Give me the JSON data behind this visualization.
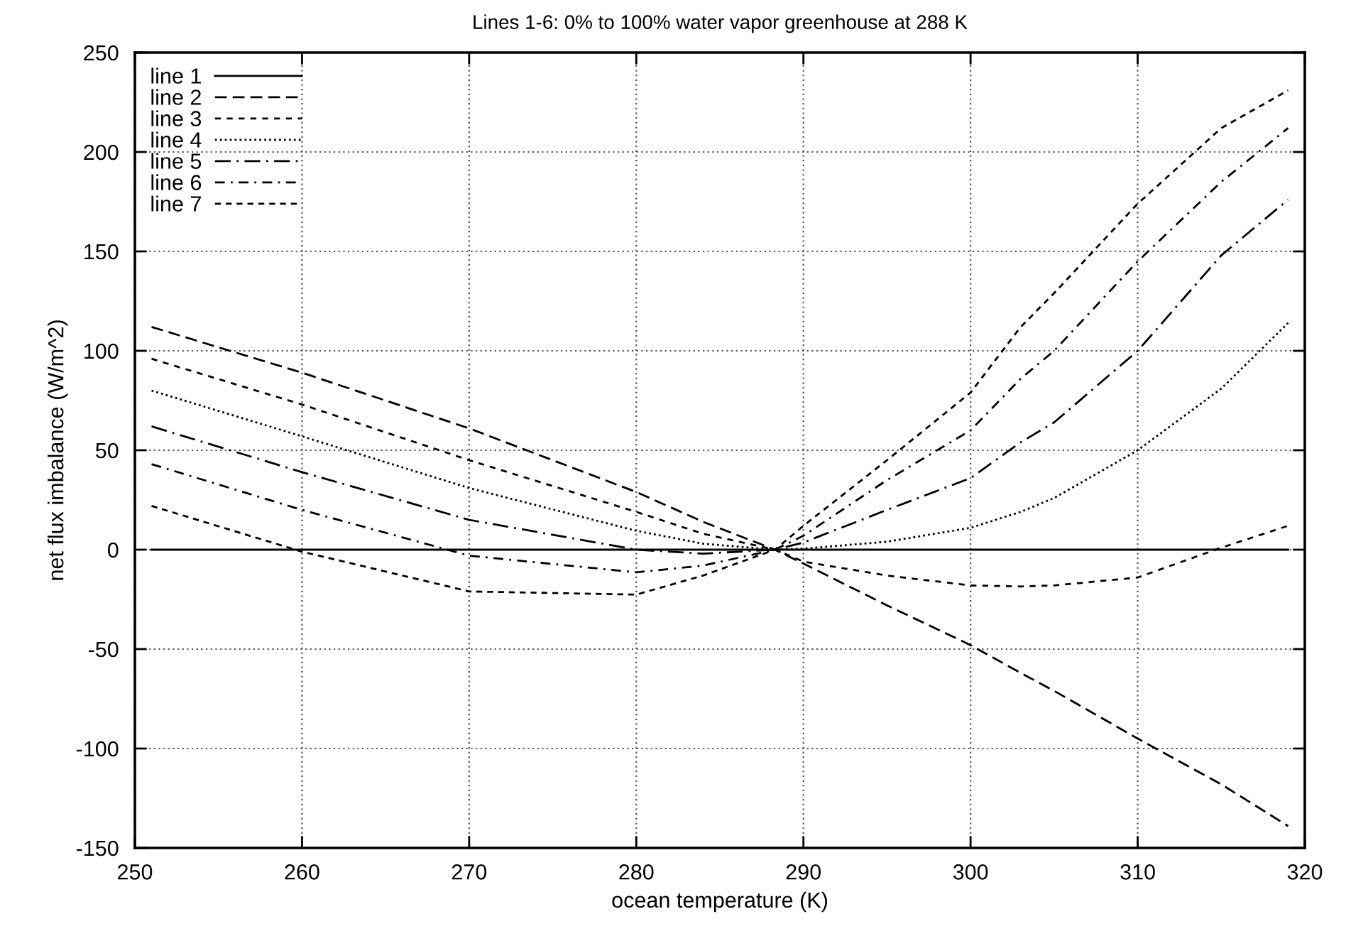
{
  "chart_data": {
    "type": "line",
    "title": "Lines 1-6: 0% to 100% water vapor greenhouse at 288 K",
    "xlabel": "ocean temperature (K)",
    "ylabel": "net flux imbalance (W/m^2)",
    "x": [
      251,
      260,
      270,
      280,
      284,
      288.3,
      290,
      295,
      300,
      303,
      305,
      310,
      315,
      319
    ],
    "series": [
      {
        "name": "line 1",
        "color": "#000000",
        "line_style": "solid",
        "values": [
          0,
          0,
          0,
          0,
          0,
          0,
          0,
          0,
          0,
          0,
          0,
          0,
          0,
          0
        ]
      },
      {
        "name": "line 2",
        "color": "#000000",
        "line_style": "dashed",
        "values": [
          112,
          89,
          61,
          29,
          14,
          0,
          -7,
          -28,
          -48,
          -62,
          -71,
          -95,
          -118,
          -139
        ]
      },
      {
        "name": "line 3",
        "color": "#000000",
        "line_style": "dashed",
        "values": [
          96,
          73,
          45,
          19,
          8,
          0,
          -6,
          -13,
          -18,
          -18.5,
          -18,
          -14,
          1,
          12
        ]
      },
      {
        "name": "line 4",
        "color": "#000000",
        "line_style": "dotted",
        "values": [
          80,
          57,
          31,
          9.5,
          3,
          0,
          0.5,
          4,
          11,
          19,
          26,
          50,
          81,
          114
        ]
      },
      {
        "name": "line 5",
        "color": "#000000",
        "line_style": "dashdot",
        "values": [
          62,
          39,
          15,
          0,
          -2,
          0,
          3.6,
          20,
          36,
          54,
          64,
          100,
          148,
          176
        ]
      },
      {
        "name": "line 6",
        "color": "#000000",
        "line_style": "dashdot",
        "values": [
          43,
          20,
          -3,
          -11.4,
          -8,
          0,
          7,
          35,
          60,
          86,
          100,
          145,
          185,
          212
        ]
      },
      {
        "name": "line 7",
        "color": "#000000",
        "line_style": "dashed",
        "values": [
          22,
          -1,
          -21,
          -22.6,
          -13,
          0,
          12,
          45,
          79,
          112,
          129,
          174,
          212,
          231
        ]
      }
    ],
    "xlim": [
      250,
      320
    ],
    "xticks": [
      250,
      260,
      270,
      280,
      290,
      300,
      310,
      320
    ],
    "ylim": [
      -150,
      250
    ],
    "yticks": [
      -150,
      -100,
      -50,
      0,
      50,
      100,
      150,
      200,
      250
    ],
    "grid": true,
    "legend": "top left"
  }
}
